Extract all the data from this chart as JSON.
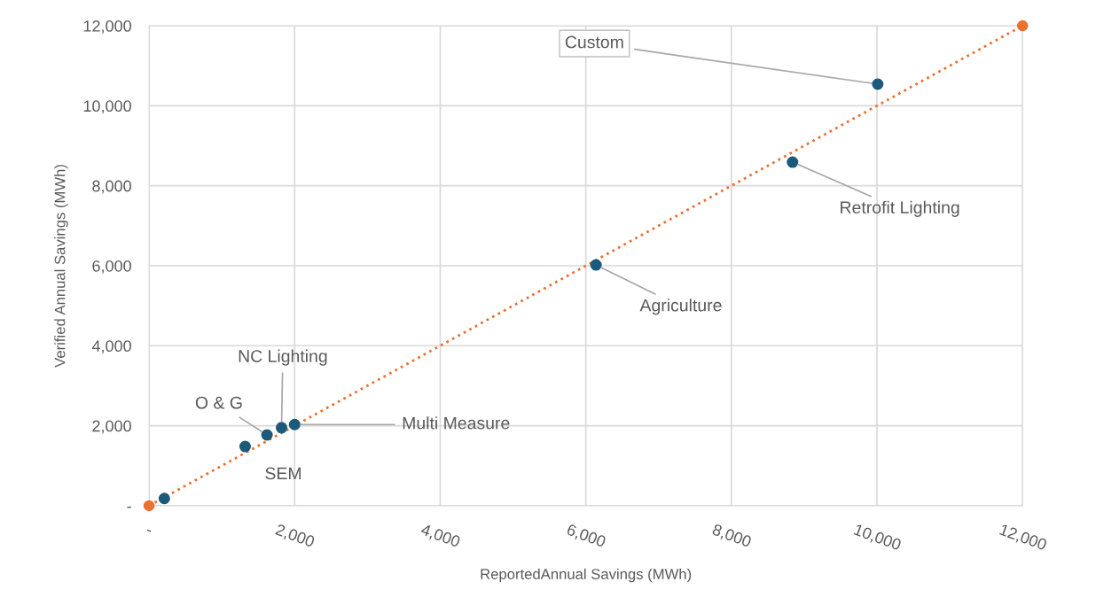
{
  "chart_data": {
    "type": "scatter",
    "xlabel": "ReportedAnnual Savings (MWh)",
    "ylabel": "Verified Annual Savings (MWh)",
    "xlim": [
      0,
      12000
    ],
    "ylim": [
      0,
      12000
    ],
    "xticks": [
      {
        "value": 0,
        "label": "-"
      },
      {
        "value": 2000,
        "label": "2,000"
      },
      {
        "value": 4000,
        "label": "4,000"
      },
      {
        "value": 6000,
        "label": "6,000"
      },
      {
        "value": 8000,
        "label": "8,000"
      },
      {
        "value": 10000,
        "label": "10,000"
      },
      {
        "value": 12000,
        "label": "12,000"
      }
    ],
    "yticks": [
      {
        "value": 0,
        "label": "-"
      },
      {
        "value": 2000,
        "label": "2,000"
      },
      {
        "value": 4000,
        "label": "4,000"
      },
      {
        "value": 6000,
        "label": "6,000"
      },
      {
        "value": 8000,
        "label": "8,000"
      },
      {
        "value": 10000,
        "label": "10,000"
      },
      {
        "value": 12000,
        "label": "12,000"
      }
    ],
    "grid": true,
    "marker": "circle",
    "series": [
      {
        "type": "line",
        "color": "#e97132",
        "line_style": "dotted",
        "x": [
          0,
          12000
        ],
        "values": [
          0,
          12000
        ]
      },
      {
        "color": "#1b5a7a",
        "x": [
          210,
          1320,
          1620,
          1820,
          2000,
          6140,
          8840,
          10010
        ],
        "values": [
          180,
          1480,
          1770,
          1950,
          2030,
          6020,
          8590,
          10540
        ]
      }
    ],
    "annotations": [
      {
        "text": "Custom",
        "x": 10010,
        "y": 10540
      },
      {
        "text": "Retrofit Lighting",
        "x": 8840,
        "y": 8590
      },
      {
        "text": "Agriculture",
        "x": 6140,
        "y": 6020
      },
      {
        "text": "Multi Measure",
        "x": 2000,
        "y": 2030
      },
      {
        "text": "NC Lighting",
        "x": 1820,
        "y": 1950
      },
      {
        "text": "O & G",
        "x": 1620,
        "y": 1770
      },
      {
        "text": "SEM",
        "x": 1320,
        "y": 1480
      }
    ]
  }
}
